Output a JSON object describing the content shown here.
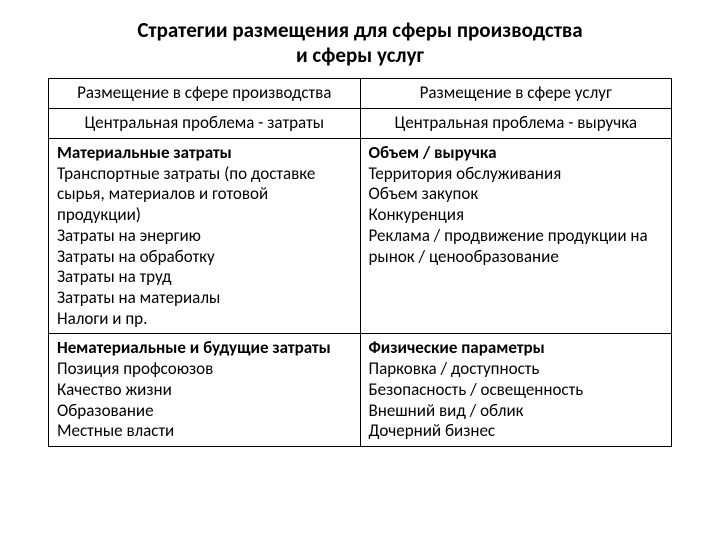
{
  "title_line1": "Стратегии размещения для сферы производства",
  "title_line2": "и сферы услуг",
  "table": {
    "border_color": "#000000",
    "background_color": "#ffffff",
    "text_color": "#000000",
    "font_family": "Calibri",
    "title_fontsize": 21,
    "cell_fontsize": 17,
    "columns": 2,
    "col_left": {
      "header": "Размещение в сфере производства",
      "subheader": "Центральная проблема - затраты",
      "block1_head": "Материальные затраты",
      "block1_body": "Транспортные затраты (по доставке сырья, материалов и готовой продукции)\nЗатраты на энергию\nЗатраты на обработку\nЗатраты на труд\nЗатраты на материалы\nНалоги и пр.",
      "block2_head": "Нематериальные и будущие затраты",
      "block2_body": "Позиция профсоюзов\nКачество жизни\nОбразование\nМестные власти"
    },
    "col_right": {
      "header": "Размещение в сфере услуг",
      "subheader": "Центральная проблема - выручка",
      "block1_head": "Объем / выручка",
      "block1_body": "Территория обслуживания\nОбъем закупок\nКонкуренция\nРеклама / продвижение продукции на рынок / ценообразование",
      "block2_head": "Физические параметры",
      "block2_body": "Парковка / доступность\nБезопасность / освещенность\nВнешний вид / облик\nДочерний бизнес"
    }
  }
}
